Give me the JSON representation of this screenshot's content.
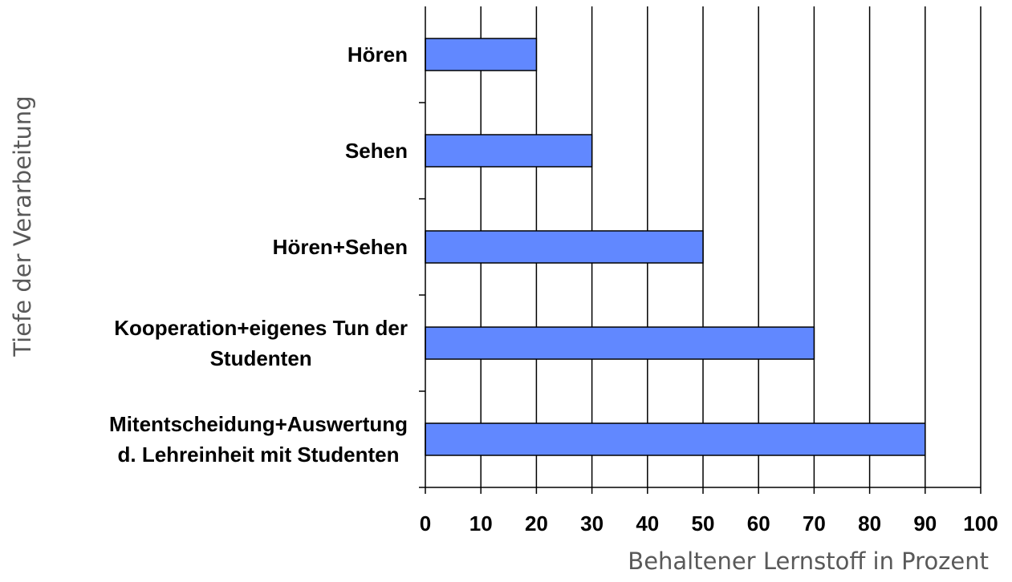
{
  "chart_data": {
    "type": "bar",
    "orientation": "horizontal",
    "categories": [
      [
        "Hören"
      ],
      [
        "Sehen"
      ],
      [
        "Hören+Sehen"
      ],
      [
        "Kooperation+eigenes Tun der",
        "Studenten"
      ],
      [
        "Mitentscheidung+Auswertung",
        "d. Lehreinheit mit Studenten"
      ]
    ],
    "values": [
      20,
      30,
      50,
      70,
      90
    ],
    "xlabel": "Behaltener Lernstoff in Prozent",
    "ylabel": "Tiefe der Verarbeitung",
    "xlim": [
      0,
      100
    ],
    "xticks": [
      0,
      10,
      20,
      30,
      40,
      50,
      60,
      70,
      80,
      90,
      100
    ],
    "grid": "vertical",
    "legend": "none",
    "colors": {
      "bar_fill": "#6188ff",
      "bar_stroke": "#000000",
      "grid": "#000000",
      "axis_title": "#595959"
    }
  }
}
